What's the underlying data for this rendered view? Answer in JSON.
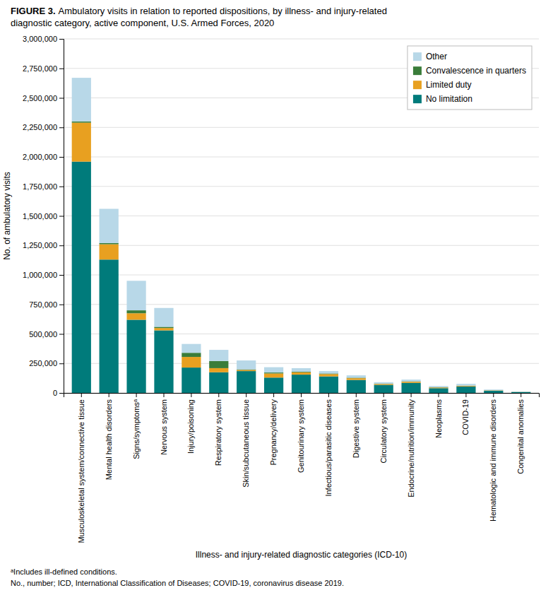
{
  "chart_data": {
    "type": "bar",
    "stacked": true,
    "title": "FIGURE 3.",
    "subtitle": "Ambulatory visits in relation to reported dispositions, by illness- and injury-related\ndiagnostic category, active component, U.S. Armed Forces, 2020",
    "xlabel": "Illness- and injury-related diagnostic categories (ICD-10)",
    "ylabel": "No. of ambulatory visits",
    "annotations": [
      "ᵃIncludes ill-defined conditions.",
      "No., number; ICD, International Classification of Diseases; COVID-19, coronavirus disease 2019."
    ],
    "categories": [
      "Musculoskeletal system/connective tissue",
      "Mental health disorders",
      "Signs/symptomsᵃ",
      "Nervous system",
      "Injury/poisoning",
      "Respiratory system",
      "Skin/subcutaneous tissue",
      "Pregnancy/delivery",
      "Genitourinary system",
      "Infectious/parasitic diseases",
      "Digestive system",
      "Circulatory system",
      "Endocrine/nutrition/immunity",
      "Neoplasms",
      "COVID-19",
      "Hematologic and immune disorders",
      "Congenital anomalies"
    ],
    "series": [
      {
        "name": "No limitation",
        "color": "#007B7B",
        "values": [
          1960000,
          1130000,
          620000,
          530000,
          215000,
          175000,
          185000,
          130000,
          155000,
          140000,
          110000,
          68000,
          85000,
          40000,
          55000,
          18000,
          8000
        ]
      },
      {
        "name": "Limited duty",
        "color": "#E8A020",
        "values": [
          330000,
          130000,
          55000,
          20000,
          90000,
          35000,
          10000,
          35000,
          20000,
          20000,
          15000,
          8000,
          10000,
          6000,
          5000,
          3000,
          1000
        ]
      },
      {
        "name": "Convalescence in quarters",
        "color": "#3A7D3A",
        "values": [
          10000,
          10000,
          25000,
          10000,
          35000,
          60000,
          5000,
          8000,
          5000,
          5000,
          4000,
          3000,
          3000,
          2000,
          2000,
          1000,
          500
        ]
      },
      {
        "name": "Other",
        "color": "#B8D8E8",
        "values": [
          370000,
          290000,
          250000,
          160000,
          75000,
          95000,
          75000,
          45000,
          30000,
          20000,
          20000,
          12000,
          15000,
          10000,
          15000,
          7000,
          3000
        ]
      }
    ],
    "ylim": [
      0,
      3000000
    ],
    "yticks": [
      0,
      {
        "value": 250000,
        "label": "250,000"
      },
      {
        "value": 500000,
        "label": "500,000"
      },
      {
        "value": 750000,
        "label": "750,000"
      },
      {
        "value": 1000000,
        "label": "1,000,000"
      },
      {
        "value": 1250000,
        "label": "1,250,000"
      },
      {
        "value": 1500000,
        "label": "1,500,000"
      },
      {
        "value": 1750000,
        "label": "1,750,000"
      },
      {
        "value": 2000000,
        "label": "2,000,000"
      },
      {
        "value": 2250000,
        "label": "2,250,000"
      },
      {
        "value": 2500000,
        "label": "2,500,000"
      },
      {
        "value": 2750000,
        "label": "2,750,000"
      },
      {
        "value": 3000000,
        "label": "3,000,000"
      }
    ],
    "grid": true,
    "legend": "upper right"
  }
}
